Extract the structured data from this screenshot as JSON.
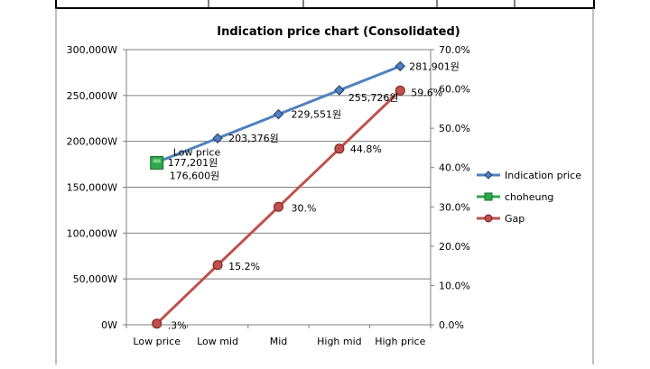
{
  "chart_data": {
    "type": "line",
    "title": "Indication price chart (Consolidated)",
    "categories": [
      "Low price",
      "Low mid",
      "Mid",
      "High mid",
      "High price"
    ],
    "y_left": {
      "ticks": [
        "0W",
        "50,000W",
        "100,000W",
        "150,000W",
        "200,000W",
        "250,000W",
        "300,000W"
      ],
      "ylim": [
        0,
        300000
      ]
    },
    "y_right": {
      "ticks": [
        "0.0%",
        "10.0%",
        "20.0%",
        "30.0%",
        "40.0%",
        "50.0%",
        "60.0%",
        "70.0%"
      ],
      "ylim": [
        0,
        70
      ]
    },
    "grid": true,
    "legend_position": "right",
    "series": [
      {
        "name": "Indication price",
        "axis": "left",
        "color": "#4f81bd",
        "marker": "diamond",
        "values": [
          177201,
          203376,
          229551,
          255726,
          281901
        ],
        "labels": [
          "177,201원",
          "203,376원",
          "229,551원",
          "255,726원",
          "281,901원"
        ]
      },
      {
        "name": "choheung",
        "axis": "left",
        "color": "#2ea84a",
        "marker": "square",
        "values": [
          176600,
          null,
          null,
          null,
          null
        ],
        "labels": [
          "176,600원",
          "",
          "",
          "",
          ""
        ]
      },
      {
        "name": "Gap",
        "axis": "right",
        "color": "#c0504d",
        "marker": "circle",
        "values": [
          0.3,
          15.2,
          30.0,
          44.8,
          59.6
        ],
        "labels": [
          ".3%",
          "15.2%",
          "30.%",
          "44.8%",
          "59.6%"
        ]
      }
    ],
    "annotations": [
      {
        "text": "Low price",
        "category": "Low price",
        "series": "choheung"
      }
    ]
  }
}
